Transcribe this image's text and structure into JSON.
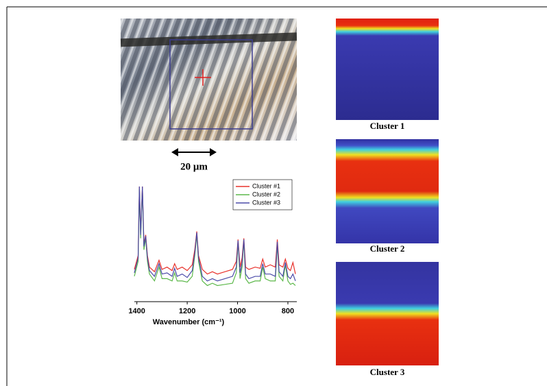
{
  "chart_data": {
    "type": "line",
    "xlabel": "Wavenumber (cm⁻¹)",
    "x": [
      1410,
      1395,
      1390,
      1385,
      1378,
      1372,
      1365,
      1358,
      1350,
      1330,
      1312,
      1300,
      1280,
      1260,
      1250,
      1240,
      1220,
      1200,
      1180,
      1170,
      1162,
      1155,
      1140,
      1120,
      1100,
      1080,
      1050,
      1020,
      1005,
      998,
      990,
      982,
      975,
      968,
      955,
      930,
      910,
      900,
      890,
      870,
      850,
      842,
      835,
      820,
      810,
      800,
      790,
      780,
      770
    ],
    "series": [
      {
        "name": "Cluster #1",
        "color": "#e8302a",
        "values": [
          28,
          40,
          100,
          60,
          100,
          50,
          58,
          40,
          30,
          26,
          36,
          28,
          30,
          27,
          33,
          28,
          30,
          27,
          32,
          45,
          61,
          40,
          28,
          24,
          26,
          24,
          26,
          28,
          35,
          54,
          30,
          38,
          55,
          30,
          28,
          30,
          29,
          37,
          30,
          32,
          30,
          54,
          32,
          30,
          37,
          29,
          27,
          34,
          24
        ]
      },
      {
        "name": "Cluster #2",
        "color": "#5cb84a",
        "values": [
          22,
          35,
          98,
          55,
          98,
          45,
          55,
          35,
          24,
          18,
          30,
          20,
          20,
          18,
          25,
          18,
          18,
          17,
          22,
          40,
          58,
          35,
          18,
          14,
          16,
          14,
          15,
          16,
          25,
          52,
          20,
          30,
          53,
          20,
          16,
          18,
          18,
          30,
          20,
          18,
          18,
          50,
          22,
          18,
          32,
          18,
          15,
          16,
          14
        ]
      },
      {
        "name": "Cluster #3",
        "color": "#4a4aa8",
        "values": [
          25,
          38,
          100,
          58,
          100,
          48,
          57,
          38,
          27,
          22,
          33,
          24,
          25,
          22,
          29,
          22,
          24,
          21,
          27,
          42,
          60,
          38,
          22,
          18,
          20,
          18,
          20,
          22,
          30,
          53,
          25,
          34,
          54,
          24,
          20,
          22,
          22,
          33,
          24,
          24,
          22,
          52,
          26,
          22,
          34,
          22,
          20,
          24,
          18
        ]
      }
    ],
    "xlim": [
      1410,
      770
    ],
    "xticks": [
      1400,
      1200,
      1000,
      800
    ],
    "ylim": [
      0,
      100
    ],
    "legend": "upper right"
  },
  "image": {
    "scale_bar": "20 μm"
  },
  "maps": [
    {
      "label": "Cluster 1"
    },
    {
      "label": "Cluster 2"
    },
    {
      "label": "Cluster 3"
    }
  ]
}
